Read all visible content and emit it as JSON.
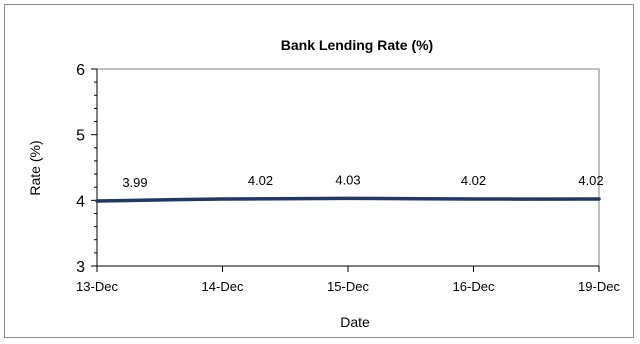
{
  "chart_data": {
    "type": "line",
    "title": "Bank Lending Rate (%)",
    "xlabel": "Date",
    "ylabel": "Rate (%)",
    "categories": [
      "13-Dec",
      "14-Dec",
      "15-Dec",
      "16-Dec",
      "19-Dec"
    ],
    "series": [
      {
        "values": [
          3.99,
          4.02,
          4.03,
          4.02,
          4.02
        ],
        "color": "#1f3864"
      }
    ],
    "data_labels": [
      "3.99",
      "4.02",
      "4.03",
      "4.02",
      "4.02"
    ],
    "ylim": [
      3,
      6
    ],
    "yticks": [
      "3",
      "4",
      "5",
      "6"
    ],
    "grid": false,
    "legend": "none"
  }
}
